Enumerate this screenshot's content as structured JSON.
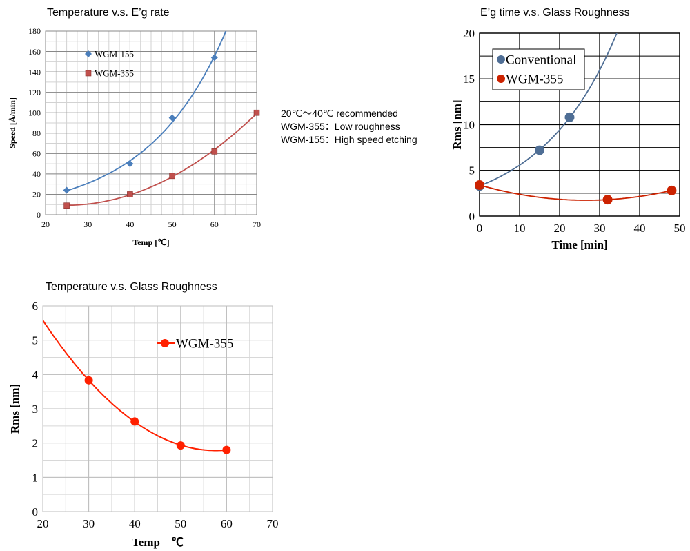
{
  "note": {
    "line1": "20℃〜40℃ recommended",
    "line2": "WGM-355：Low roughness",
    "line3": "WGM-155：High speed etching"
  },
  "chart_data": [
    {
      "type": "scatter",
      "title": "Temperature v.s. E’g rate",
      "xlabel": "Temp [℃]",
      "ylabel": "Speed [Å/min]",
      "xlim": [
        20,
        70
      ],
      "ylim": [
        0,
        180
      ],
      "xticks": [
        20,
        30,
        40,
        50,
        60,
        70
      ],
      "yticks": [
        0,
        20,
        40,
        60,
        80,
        100,
        120,
        140,
        160,
        180
      ],
      "grid": true,
      "legend": "top-left",
      "series": [
        {
          "name": "WGM-155",
          "color": "#4a7ebb",
          "marker": "diamond",
          "x": [
            25,
            40,
            50,
            60
          ],
          "y": [
            24,
            50,
            95,
            154
          ],
          "fit": "exponential",
          "fit_range": [
            25,
            63.5
          ]
        },
        {
          "name": "WGM-355",
          "color": "#c0504d",
          "marker": "square",
          "x": [
            25,
            40,
            50,
            60,
            70
          ],
          "y": [
            9,
            20,
            38,
            62,
            100
          ],
          "fit": "smooth",
          "fit_range": [
            25,
            70
          ]
        }
      ]
    },
    {
      "type": "scatter",
      "title": "E’g time v.s. Glass Roughness",
      "xlabel": "Time [min]",
      "ylabel": "Rms [nm]",
      "xlim": [
        0,
        50
      ],
      "ylim": [
        0,
        20
      ],
      "xticks": [
        0,
        10,
        20,
        30,
        40,
        50
      ],
      "yticks": [
        0,
        5,
        10,
        15,
        20
      ],
      "grid": true,
      "legend": "top-left",
      "series": [
        {
          "name": "Conventional",
          "color": "#4f6e95",
          "marker": "circle",
          "x": [
            0,
            15,
            22.5
          ],
          "y": [
            3.3,
            7.2,
            10.8
          ],
          "fit": "exponential",
          "fit_range": [
            0,
            35.5
          ]
        },
        {
          "name": "WGM-355",
          "color": "#cc2200",
          "marker": "circle",
          "x": [
            0,
            32,
            48
          ],
          "y": [
            3.4,
            1.8,
            2.8
          ],
          "fit": "smooth",
          "fit_range": [
            0,
            48
          ]
        }
      ]
    },
    {
      "type": "line",
      "title": "Temperature v.s. Glass Roughness",
      "xlabel": "Temp　℃",
      "ylabel": "Rms [nm]",
      "xlim": [
        20,
        70
      ],
      "ylim": [
        0,
        6
      ],
      "xticks": [
        20,
        30,
        40,
        50,
        60,
        70
      ],
      "yticks": [
        0,
        1,
        2,
        3,
        4,
        5,
        6
      ],
      "grid": true,
      "legend": "top-right",
      "series": [
        {
          "name": "WGM-355",
          "color": "#ff2000",
          "marker": "circle",
          "x": [
            30,
            40,
            50,
            60
          ],
          "y": [
            3.83,
            2.63,
            1.93,
            1.8
          ],
          "fit": "smooth",
          "fit_range": [
            20,
            60
          ]
        }
      ]
    }
  ]
}
